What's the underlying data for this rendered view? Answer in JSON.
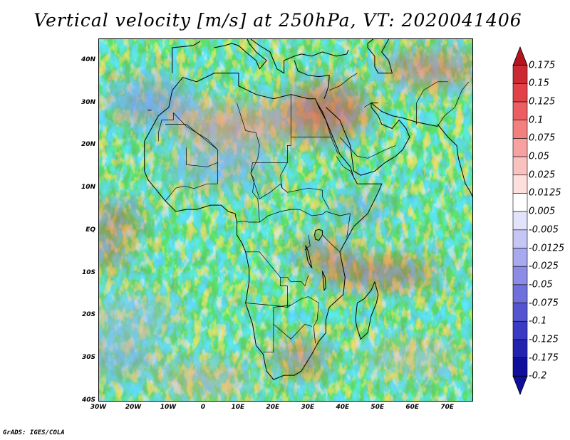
{
  "title": "Vertical velocity [m/s] at 250hPa, VT: 2020041406",
  "credit": "GrADS: IGES/COLA",
  "map": {
    "lat_range": [
      -40,
      45
    ],
    "lon_range": [
      -30,
      77
    ],
    "lat_labels": [
      "40N",
      "30N",
      "20N",
      "10N",
      "EQ",
      "10S",
      "20S",
      "30S",
      "40S"
    ],
    "lat_values": [
      40,
      30,
      20,
      10,
      0,
      -10,
      -20,
      -30,
      -40
    ],
    "lon_labels": [
      "30W",
      "20W",
      "10W",
      "0",
      "10E",
      "20E",
      "30E",
      "40E",
      "50E",
      "60E",
      "70E"
    ],
    "lon_values": [
      -30,
      -20,
      -10,
      0,
      10,
      20,
      30,
      40,
      50,
      60,
      70
    ]
  },
  "colorbar": {
    "labels": [
      "0.175",
      "0.15",
      "0.125",
      "0.1",
      "0.075",
      "0.05",
      "0.025",
      "0.0125",
      "0.005",
      "-0.005",
      "-0.0125",
      "-0.025",
      "-0.05",
      "-0.075",
      "-0.1",
      "-0.125",
      "-0.175",
      "-0.2"
    ],
    "colors": [
      "#b4141e",
      "#cc2a32",
      "#e04248",
      "#ec5e62",
      "#f3807f",
      "#f7a2a0",
      "#fac2bf",
      "#fde0de",
      "#ffffff",
      "#e2e2fa",
      "#c6c6f4",
      "#a9a9ee",
      "#8c8ce6",
      "#7070dc",
      "#5555d0",
      "#3a3ac2",
      "#2222b0",
      "#0f0f9c"
    ]
  },
  "colors": {
    "positive_strong": "#c0303a",
    "negative_strong": "#3030c8",
    "land_outline": "#000000"
  }
}
